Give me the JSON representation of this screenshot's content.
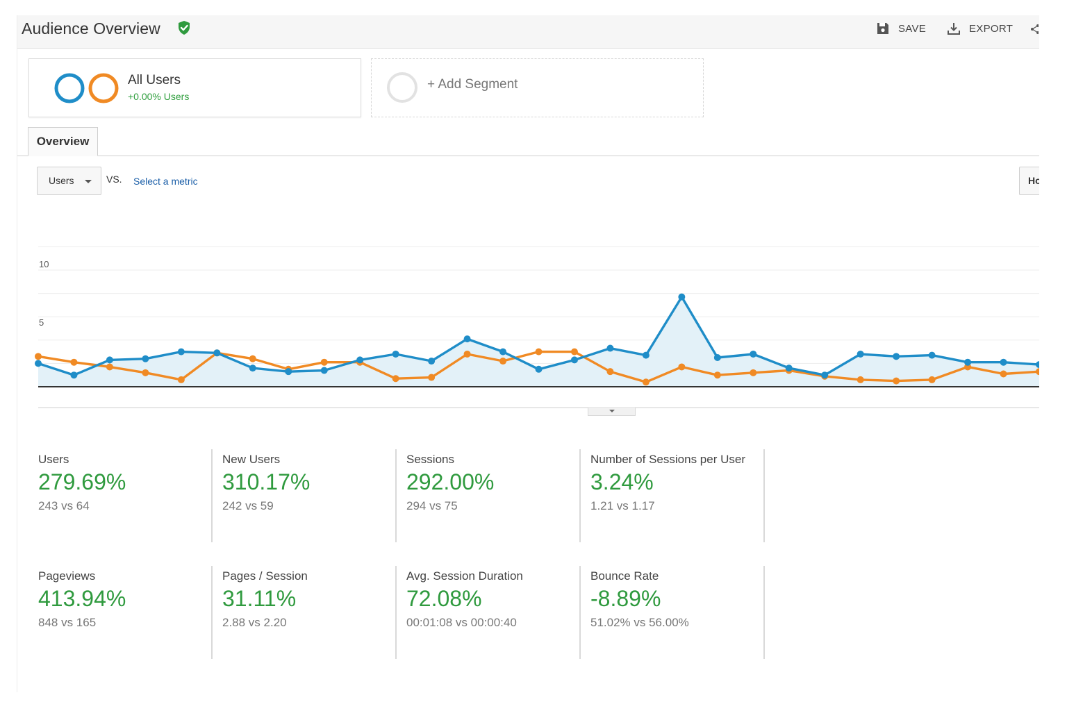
{
  "header": {
    "title": "Audience Overview",
    "save_label": "SAVE",
    "export_label": "EXPORT"
  },
  "segments": {
    "all_users": {
      "name": "All Users",
      "stat": "+0.00% Users"
    },
    "add_label": "+ Add Segment"
  },
  "tabs": {
    "overview": "Overview"
  },
  "controls": {
    "metric": "Users",
    "vs": "VS.",
    "select_metric": "Select a metric",
    "granularity": "Ho"
  },
  "colors": {
    "series_current": "#1f8dc8",
    "series_previous": "#f08a24",
    "area_fill": "#e3f1f8",
    "positive": "#2f9a3e"
  },
  "chart_data": {
    "type": "line",
    "ylim": [
      0,
      10
    ],
    "y_ticks": [
      "10",
      "5"
    ],
    "series": [
      {
        "values": [
          2,
          1,
          2.3,
          2.4,
          3,
          2.9,
          1.6,
          1.3,
          1.4,
          2.3,
          2.8,
          2.2,
          4.1,
          3,
          1.5,
          2.3,
          3.3,
          2.7,
          7.7,
          2.5,
          2.8,
          1.6,
          1,
          2.8,
          2.6,
          2.7,
          2.1,
          2.1,
          1.9
        ]
      },
      {
        "values": [
          2.6,
          2.1,
          1.7,
          1.2,
          0.6,
          2.9,
          2.4,
          1.5,
          2.1,
          2.1,
          0.7,
          0.8,
          2.8,
          2.2,
          3,
          3,
          1.3,
          0.4,
          1.7,
          1,
          1.2,
          1.4,
          0.9,
          0.6,
          0.5,
          0.6,
          1.7,
          1.1,
          1.3
        ]
      }
    ]
  },
  "scorecards": [
    {
      "label": "Users",
      "value": "279.69%",
      "compare": "243 vs 64"
    },
    {
      "label": "New Users",
      "value": "310.17%",
      "compare": "242 vs 59"
    },
    {
      "label": "Sessions",
      "value": "292.00%",
      "compare": "294 vs 75"
    },
    {
      "label": "Number of Sessions per User",
      "value": "3.24%",
      "compare": "1.21 vs 1.17"
    },
    {
      "label": "Pageviews",
      "value": "413.94%",
      "compare": "848 vs 165"
    },
    {
      "label": "Pages / Session",
      "value": "31.11%",
      "compare": "2.88 vs 2.20"
    },
    {
      "label": "Avg. Session Duration",
      "value": "72.08%",
      "compare": "00:01:08 vs 00:00:40"
    },
    {
      "label": "Bounce Rate",
      "value": "-8.89%",
      "compare": "51.02% vs 56.00%"
    }
  ]
}
